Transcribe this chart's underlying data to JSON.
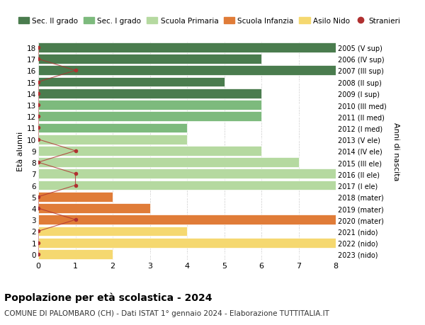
{
  "ages": [
    18,
    17,
    16,
    15,
    14,
    13,
    12,
    11,
    10,
    9,
    8,
    7,
    6,
    5,
    4,
    3,
    2,
    1,
    0
  ],
  "years_labels": [
    "2005 (V sup)",
    "2006 (IV sup)",
    "2007 (III sup)",
    "2008 (II sup)",
    "2009 (I sup)",
    "2010 (III med)",
    "2011 (II med)",
    "2012 (I med)",
    "2013 (V ele)",
    "2014 (IV ele)",
    "2015 (III ele)",
    "2016 (II ele)",
    "2017 (I ele)",
    "2018 (mater)",
    "2019 (mater)",
    "2020 (mater)",
    "2021 (nido)",
    "2022 (nido)",
    "2023 (nido)"
  ],
  "bar_values": [
    8,
    6,
    8,
    5,
    6,
    6,
    6,
    4,
    4,
    6,
    7,
    8,
    8,
    2,
    3,
    8,
    4,
    8,
    2
  ],
  "bar_colors": [
    "#4a7c4e",
    "#4a7c4e",
    "#4a7c4e",
    "#4a7c4e",
    "#4a7c4e",
    "#7dba7d",
    "#7dba7d",
    "#7dba7d",
    "#b5d9a0",
    "#b5d9a0",
    "#b5d9a0",
    "#b5d9a0",
    "#b5d9a0",
    "#e07c38",
    "#e07c38",
    "#e07c38",
    "#f5d870",
    "#f5d870",
    "#f5d870"
  ],
  "stranieri_values": [
    0,
    0,
    1,
    0,
    0,
    0,
    0,
    0,
    0,
    1,
    0,
    1,
    1,
    0,
    0,
    1,
    0,
    0,
    0
  ],
  "stranieri_color": "#b03030",
  "stranieri_line_color": "#b03030",
  "legend_items": [
    {
      "label": "Sec. II grado",
      "color": "#4a7c4e"
    },
    {
      "label": "Sec. I grado",
      "color": "#7dba7d"
    },
    {
      "label": "Scuola Primaria",
      "color": "#b5d9a0"
    },
    {
      "label": "Scuola Infanzia",
      "color": "#e07c38"
    },
    {
      "label": "Asilo Nido",
      "color": "#f5d870"
    },
    {
      "label": "Stranieri",
      "color": "#b03030"
    }
  ],
  "ylabel_left": "Età alunni",
  "ylabel_right": "Anni di nascita",
  "xlim": [
    0,
    8
  ],
  "title": "Popolazione per età scolastica - 2024",
  "subtitle": "COMUNE DI PALOMBARO (CH) - Dati ISTAT 1° gennaio 2024 - Elaborazione TUTTITALIA.IT",
  "background_color": "#ffffff",
  "grid_color": "#cccccc",
  "bar_height": 0.85
}
